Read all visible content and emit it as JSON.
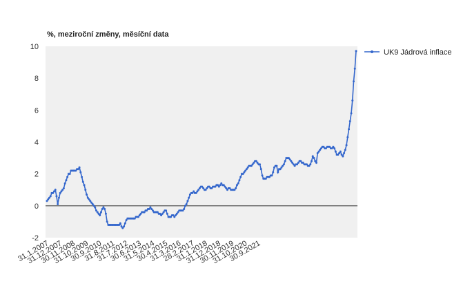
{
  "chart_data": {
    "type": "line",
    "title": "%, meziroční změny, měsíční data",
    "xlabel": "",
    "ylabel": "",
    "ylim": [
      -2,
      10
    ],
    "yticks": [
      -2,
      0,
      2,
      4,
      6,
      8,
      10
    ],
    "grid": false,
    "plot_background": "#f0f0f0",
    "legend_position": "right",
    "x_tick_labels": [
      "31.1.2007",
      "31.12.2007",
      "30.11.2008",
      "31.10.2009",
      "30.9.2010",
      "31.8.2011",
      "31.7.2012",
      "30.6.2013",
      "31.5.2014",
      "30.4.2015",
      "31.3.2016",
      "28.2.2017",
      "31.1.2018",
      "31.12.2018",
      "30.11.2019",
      "31.10.2020",
      "30.9.2021"
    ],
    "series": [
      {
        "name": "UK9 Jádrová inflace",
        "color": "#3366cc",
        "values": [
          0.3,
          0.4,
          0.5,
          0.6,
          0.8,
          0.8,
          0.9,
          1.0,
          0.6,
          0.1,
          0.5,
          0.8,
          0.9,
          1.0,
          1.1,
          1.4,
          1.6,
          1.8,
          2.0,
          2.0,
          2.2,
          2.2,
          2.2,
          2.2,
          2.2,
          2.3,
          2.3,
          2.4,
          2.1,
          1.8,
          1.5,
          1.3,
          1.0,
          0.7,
          0.5,
          0.4,
          0.3,
          0.2,
          0.1,
          0.0,
          -0.1,
          -0.3,
          -0.4,
          -0.5,
          -0.6,
          -0.4,
          -0.2,
          -0.1,
          -0.2,
          -0.5,
          -1.0,
          -1.2,
          -1.2,
          -1.2,
          -1.2,
          -1.2,
          -1.2,
          -1.2,
          -1.2,
          -1.2,
          -1.2,
          -1.1,
          -1.3,
          -1.4,
          -1.3,
          -1.1,
          -0.9,
          -0.8,
          -0.8,
          -0.8,
          -0.8,
          -0.8,
          -0.8,
          -0.8,
          -0.7,
          -0.7,
          -0.7,
          -0.6,
          -0.5,
          -0.4,
          -0.4,
          -0.4,
          -0.3,
          -0.3,
          -0.2,
          -0.2,
          -0.1,
          -0.2,
          -0.3,
          -0.4,
          -0.4,
          -0.4,
          -0.4,
          -0.5,
          -0.5,
          -0.6,
          -0.5,
          -0.4,
          -0.3,
          -0.3,
          -0.5,
          -0.7,
          -0.7,
          -0.7,
          -0.6,
          -0.6,
          -0.7,
          -0.6,
          -0.5,
          -0.4,
          -0.3,
          -0.3,
          -0.3,
          -0.3,
          -0.2,
          0.0,
          0.1,
          0.3,
          0.5,
          0.7,
          0.8,
          0.8,
          0.9,
          0.8,
          0.8,
          0.9,
          1.0,
          1.1,
          1.2,
          1.2,
          1.1,
          1.0,
          1.0,
          1.1,
          1.2,
          1.2,
          1.1,
          1.1,
          1.2,
          1.2,
          1.2,
          1.3,
          1.3,
          1.2,
          1.3,
          1.4,
          1.3,
          1.3,
          1.2,
          1.1,
          1.0,
          1.1,
          1.1,
          1.0,
          1.0,
          1.0,
          1.0,
          1.1,
          1.3,
          1.4,
          1.6,
          1.8,
          2.0,
          2.0,
          2.1,
          2.2,
          2.3,
          2.4,
          2.5,
          2.5,
          2.5,
          2.6,
          2.7,
          2.8,
          2.8,
          2.7,
          2.6,
          2.6,
          2.3,
          1.9,
          1.7,
          1.7,
          1.7,
          1.8,
          1.8,
          1.8,
          1.9,
          1.9,
          2.1,
          2.4,
          2.5,
          2.5,
          2.1,
          2.3,
          2.3,
          2.4,
          2.5,
          2.6,
          2.8,
          3.0,
          3.0,
          3.0,
          2.9,
          2.8,
          2.7,
          2.6,
          2.5,
          2.6,
          2.6,
          2.7,
          2.8,
          2.8,
          2.7,
          2.7,
          2.6,
          2.6,
          2.6,
          2.5,
          2.5,
          2.6,
          2.8,
          3.1,
          3.0,
          2.8,
          2.7,
          3.3,
          3.4,
          3.5,
          3.6,
          3.7,
          3.7,
          3.6,
          3.6,
          3.7,
          3.7,
          3.7,
          3.6,
          3.6,
          3.7,
          3.6,
          3.4,
          3.2,
          3.2,
          3.3,
          3.4,
          3.2,
          3.1,
          3.3,
          3.5,
          3.8,
          4.3,
          4.8,
          5.3,
          5.8,
          6.6,
          7.8,
          8.6,
          9.7
        ]
      }
    ]
  }
}
